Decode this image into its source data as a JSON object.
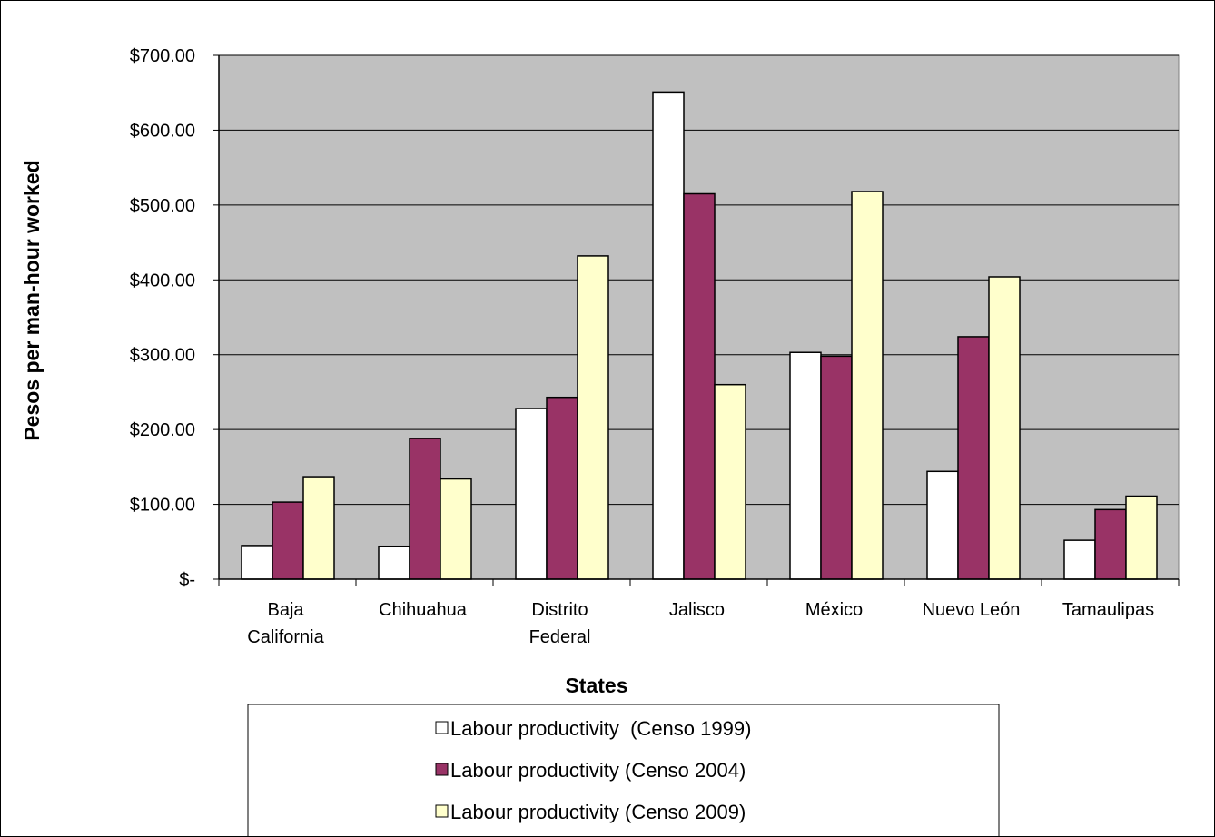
{
  "chart_data": {
    "type": "bar",
    "title": "",
    "xlabel": "States",
    "ylabel": "Pesos per man-hour worked",
    "ylim": [
      0,
      700
    ],
    "yticks": [
      0,
      100,
      200,
      300,
      400,
      500,
      600,
      700
    ],
    "ytick_labels": [
      "$-",
      "$100.00",
      "$200.00",
      "$300.00",
      "$400.00",
      "$500.00",
      "$600.00",
      "$700.00"
    ],
    "grid": true,
    "legend_position": "bottom",
    "plot_background": "#c0c0c0",
    "categories": [
      [
        "Baja",
        "California"
      ],
      [
        "Chihuahua"
      ],
      [
        "Distrito",
        "Federal"
      ],
      [
        "Jalisco"
      ],
      [
        "México"
      ],
      [
        "Nuevo León"
      ],
      [
        "Tamaulipas"
      ]
    ],
    "series": [
      {
        "name": "Labour productivity  (Censo 1999)",
        "color": "#ffffff",
        "values": [
          45,
          44,
          228,
          651,
          303,
          144,
          52
        ]
      },
      {
        "name": "Labour productivity (Censo 2004)",
        "color": "#993366",
        "values": [
          103,
          188,
          243,
          515,
          298,
          324,
          93
        ]
      },
      {
        "name": "Labour productivity (Censo 2009)",
        "color": "#ffffcc",
        "values": [
          137,
          134,
          432,
          260,
          518,
          404,
          111
        ]
      }
    ]
  }
}
